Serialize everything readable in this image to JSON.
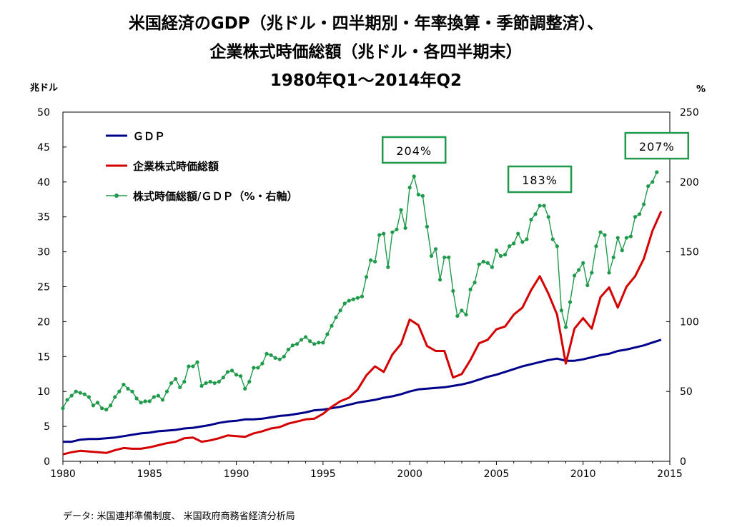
{
  "title_lines": [
    "米国経済のGDP（兆ドル・四半期別・年率換算・季節調整済）、",
    "企業株式時価総額（兆ドル・各四半期末）",
    "1980年Q1～2014年Q2"
  ],
  "source": "データ:  米国連邦準備制度、 米国政府商務省経済分析局",
  "chart_data": {
    "type": "line",
    "title": "米国経済のGDP（兆ドル・四半期別・年率換算・季節調整済）、企業株式時価総額（兆ドル・各四半期末） 1980年Q1～2014年Q2",
    "xlabel": "",
    "ylabel": "兆ドル",
    "y2label": "%",
    "xlim": [
      1980,
      2015
    ],
    "ylim": [
      0,
      50
    ],
    "y2lim": [
      0,
      250
    ],
    "xticks": [
      1980,
      1985,
      1990,
      1995,
      2000,
      2005,
      2010,
      2015
    ],
    "yticks": [
      0,
      5,
      10,
      15,
      20,
      25,
      30,
      35,
      40,
      45,
      50
    ],
    "y2ticks": [
      0,
      50,
      100,
      150,
      200,
      250
    ],
    "grid": false,
    "legend_position": "top-left",
    "series": [
      {
        "name": "ＧＤＰ",
        "axis": "left",
        "color": "#00008b",
        "markers": false,
        "points": [
          [
            1980.0,
            2.8
          ],
          [
            1980.5,
            2.8
          ],
          [
            1981.0,
            3.1
          ],
          [
            1981.5,
            3.2
          ],
          [
            1982.0,
            3.2
          ],
          [
            1982.5,
            3.3
          ],
          [
            1983.0,
            3.4
          ],
          [
            1983.5,
            3.6
          ],
          [
            1984.0,
            3.8
          ],
          [
            1984.5,
            4.0
          ],
          [
            1985.0,
            4.1
          ],
          [
            1985.5,
            4.3
          ],
          [
            1986.0,
            4.4
          ],
          [
            1986.5,
            4.5
          ],
          [
            1987.0,
            4.7
          ],
          [
            1987.5,
            4.8
          ],
          [
            1988.0,
            5.0
          ],
          [
            1988.5,
            5.2
          ],
          [
            1989.0,
            5.5
          ],
          [
            1989.5,
            5.7
          ],
          [
            1990.0,
            5.8
          ],
          [
            1990.5,
            6.0
          ],
          [
            1991.0,
            6.0
          ],
          [
            1991.5,
            6.1
          ],
          [
            1992.0,
            6.3
          ],
          [
            1992.5,
            6.5
          ],
          [
            1993.0,
            6.6
          ],
          [
            1993.5,
            6.8
          ],
          [
            1994.0,
            7.0
          ],
          [
            1994.5,
            7.3
          ],
          [
            1995.0,
            7.4
          ],
          [
            1995.5,
            7.6
          ],
          [
            1996.0,
            7.8
          ],
          [
            1996.5,
            8.1
          ],
          [
            1997.0,
            8.4
          ],
          [
            1997.5,
            8.6
          ],
          [
            1998.0,
            8.8
          ],
          [
            1998.5,
            9.1
          ],
          [
            1999.0,
            9.3
          ],
          [
            1999.5,
            9.6
          ],
          [
            2000.0,
            10.0
          ],
          [
            2000.5,
            10.3
          ],
          [
            2001.0,
            10.4
          ],
          [
            2001.5,
            10.5
          ],
          [
            2002.0,
            10.6
          ],
          [
            2002.5,
            10.8
          ],
          [
            2003.0,
            11.0
          ],
          [
            2003.5,
            11.3
          ],
          [
            2004.0,
            11.7
          ],
          [
            2004.5,
            12.1
          ],
          [
            2005.0,
            12.4
          ],
          [
            2005.5,
            12.8
          ],
          [
            2006.0,
            13.2
          ],
          [
            2006.5,
            13.6
          ],
          [
            2007.0,
            13.9
          ],
          [
            2007.5,
            14.2
          ],
          [
            2008.0,
            14.5
          ],
          [
            2008.5,
            14.7
          ],
          [
            2009.0,
            14.4
          ],
          [
            2009.5,
            14.4
          ],
          [
            2010.0,
            14.6
          ],
          [
            2010.5,
            14.9
          ],
          [
            2011.0,
            15.2
          ],
          [
            2011.5,
            15.4
          ],
          [
            2012.0,
            15.8
          ],
          [
            2012.5,
            16.0
          ],
          [
            2013.0,
            16.3
          ],
          [
            2013.5,
            16.6
          ],
          [
            2014.0,
            17.0
          ],
          [
            2014.5,
            17.4
          ]
        ]
      },
      {
        "name": "企業株式時価総額",
        "axis": "left",
        "color": "#d40000",
        "markers": false,
        "points": [
          [
            1980.0,
            1.0
          ],
          [
            1980.5,
            1.3
          ],
          [
            1981.0,
            1.5
          ],
          [
            1981.5,
            1.4
          ],
          [
            1982.0,
            1.3
          ],
          [
            1982.5,
            1.2
          ],
          [
            1983.0,
            1.6
          ],
          [
            1983.5,
            1.9
          ],
          [
            1984.0,
            1.8
          ],
          [
            1984.5,
            1.8
          ],
          [
            1985.0,
            2.0
          ],
          [
            1985.5,
            2.3
          ],
          [
            1986.0,
            2.6
          ],
          [
            1986.5,
            2.8
          ],
          [
            1987.0,
            3.3
          ],
          [
            1987.5,
            3.4
          ],
          [
            1988.0,
            2.8
          ],
          [
            1988.5,
            3.0
          ],
          [
            1989.0,
            3.3
          ],
          [
            1989.5,
            3.7
          ],
          [
            1990.0,
            3.6
          ],
          [
            1990.5,
            3.5
          ],
          [
            1991.0,
            4.0
          ],
          [
            1991.5,
            4.3
          ],
          [
            1992.0,
            4.7
          ],
          [
            1992.5,
            4.9
          ],
          [
            1993.0,
            5.4
          ],
          [
            1993.5,
            5.7
          ],
          [
            1994.0,
            6.0
          ],
          [
            1994.5,
            6.1
          ],
          [
            1995.0,
            6.8
          ],
          [
            1995.5,
            7.8
          ],
          [
            1996.0,
            8.6
          ],
          [
            1996.5,
            9.1
          ],
          [
            1997.0,
            10.3
          ],
          [
            1997.5,
            12.3
          ],
          [
            1998.0,
            13.6
          ],
          [
            1998.5,
            12.8
          ],
          [
            1999.0,
            15.3
          ],
          [
            1999.5,
            16.8
          ],
          [
            2000.0,
            20.3
          ],
          [
            2000.5,
            19.5
          ],
          [
            2001.0,
            16.5
          ],
          [
            2001.5,
            15.8
          ],
          [
            2002.0,
            15.8
          ],
          [
            2002.5,
            12.0
          ],
          [
            2003.0,
            12.5
          ],
          [
            2003.5,
            14.5
          ],
          [
            2004.0,
            16.9
          ],
          [
            2004.5,
            17.4
          ],
          [
            2005.0,
            18.9
          ],
          [
            2005.5,
            19.3
          ],
          [
            2006.0,
            21.0
          ],
          [
            2006.5,
            22.0
          ],
          [
            2007.0,
            24.5
          ],
          [
            2007.5,
            26.5
          ],
          [
            2008.0,
            24.0
          ],
          [
            2008.5,
            21.0
          ],
          [
            2009.0,
            14.0
          ],
          [
            2009.5,
            19.0
          ],
          [
            2010.0,
            20.5
          ],
          [
            2010.5,
            19.0
          ],
          [
            2011.0,
            23.5
          ],
          [
            2011.5,
            24.9
          ],
          [
            2012.0,
            22.0
          ],
          [
            2012.5,
            25.0
          ],
          [
            2013.0,
            26.5
          ],
          [
            2013.5,
            29.0
          ],
          [
            2014.0,
            33.0
          ],
          [
            2014.5,
            35.8
          ]
        ]
      },
      {
        "name": "株式時価総額/ＧＤＰ（%・右軸）",
        "axis": "right",
        "color": "#1e9a4a",
        "markers": true,
        "points": [
          [
            1980.0,
            38
          ],
          [
            1980.25,
            44
          ],
          [
            1980.5,
            47
          ],
          [
            1980.75,
            50
          ],
          [
            1981.0,
            49
          ],
          [
            1981.25,
            48
          ],
          [
            1981.5,
            46
          ],
          [
            1981.75,
            40
          ],
          [
            1982.0,
            42
          ],
          [
            1982.25,
            38
          ],
          [
            1982.5,
            37
          ],
          [
            1982.75,
            40
          ],
          [
            1983.0,
            46
          ],
          [
            1983.25,
            50
          ],
          [
            1983.5,
            55
          ],
          [
            1983.75,
            52
          ],
          [
            1984.0,
            50
          ],
          [
            1984.25,
            45
          ],
          [
            1984.5,
            42
          ],
          [
            1984.75,
            43
          ],
          [
            1985.0,
            43
          ],
          [
            1985.25,
            46
          ],
          [
            1985.5,
            47
          ],
          [
            1985.75,
            44
          ],
          [
            1986.0,
            50
          ],
          [
            1986.25,
            56
          ],
          [
            1986.5,
            59
          ],
          [
            1986.75,
            53
          ],
          [
            1987.0,
            57
          ],
          [
            1987.25,
            68
          ],
          [
            1987.5,
            68
          ],
          [
            1987.75,
            71
          ],
          [
            1988.0,
            54
          ],
          [
            1988.25,
            56
          ],
          [
            1988.5,
            57
          ],
          [
            1988.75,
            56
          ],
          [
            1989.0,
            57
          ],
          [
            1989.25,
            60
          ],
          [
            1989.5,
            64
          ],
          [
            1989.75,
            65
          ],
          [
            1990.0,
            62
          ],
          [
            1990.25,
            61
          ],
          [
            1990.5,
            52
          ],
          [
            1990.75,
            57
          ],
          [
            1991.0,
            67
          ],
          [
            1991.25,
            67
          ],
          [
            1991.5,
            70
          ],
          [
            1991.75,
            77
          ],
          [
            1992.0,
            76
          ],
          [
            1992.25,
            74
          ],
          [
            1992.5,
            73
          ],
          [
            1992.75,
            75
          ],
          [
            1993.0,
            80
          ],
          [
            1993.25,
            83
          ],
          [
            1993.5,
            84
          ],
          [
            1993.75,
            87
          ],
          [
            1994.0,
            89
          ],
          [
            1994.25,
            86
          ],
          [
            1994.5,
            84
          ],
          [
            1994.75,
            85
          ],
          [
            1995.0,
            85
          ],
          [
            1995.25,
            91
          ],
          [
            1995.5,
            97
          ],
          [
            1995.75,
            103
          ],
          [
            1996.0,
            108
          ],
          [
            1996.25,
            113
          ],
          [
            1996.5,
            115
          ],
          [
            1996.75,
            116
          ],
          [
            1997.0,
            117
          ],
          [
            1997.25,
            118
          ],
          [
            1997.5,
            132
          ],
          [
            1997.75,
            144
          ],
          [
            1998.0,
            143
          ],
          [
            1998.25,
            162
          ],
          [
            1998.5,
            163
          ],
          [
            1998.75,
            139
          ],
          [
            1999.0,
            164
          ],
          [
            1999.25,
            166
          ],
          [
            1999.5,
            180
          ],
          [
            1999.75,
            167
          ],
          [
            2000.0,
            196
          ],
          [
            2000.25,
            204
          ],
          [
            2000.5,
            191
          ],
          [
            2000.75,
            190
          ],
          [
            2001.0,
            168
          ],
          [
            2001.25,
            147
          ],
          [
            2001.5,
            152
          ],
          [
            2001.75,
            130
          ],
          [
            2002.0,
            146
          ],
          [
            2002.25,
            146
          ],
          [
            2002.5,
            122
          ],
          [
            2002.75,
            104
          ],
          [
            2003.0,
            108
          ],
          [
            2003.25,
            105
          ],
          [
            2003.5,
            123
          ],
          [
            2003.75,
            128
          ],
          [
            2004.0,
            141
          ],
          [
            2004.25,
            143
          ],
          [
            2004.5,
            142
          ],
          [
            2004.75,
            139
          ],
          [
            2005.0,
            151
          ],
          [
            2005.25,
            147
          ],
          [
            2005.5,
            148
          ],
          [
            2005.75,
            154
          ],
          [
            2006.0,
            156
          ],
          [
            2006.25,
            163
          ],
          [
            2006.5,
            157
          ],
          [
            2006.75,
            159
          ],
          [
            2007.0,
            173
          ],
          [
            2007.25,
            177
          ],
          [
            2007.5,
            183
          ],
          [
            2007.75,
            183
          ],
          [
            2008.0,
            175
          ],
          [
            2008.25,
            159
          ],
          [
            2008.5,
            154
          ],
          [
            2008.75,
            108
          ],
          [
            2009.0,
            96
          ],
          [
            2009.25,
            114
          ],
          [
            2009.5,
            133
          ],
          [
            2009.75,
            137
          ],
          [
            2010.0,
            142
          ],
          [
            2010.25,
            126
          ],
          [
            2010.5,
            135
          ],
          [
            2010.75,
            154
          ],
          [
            2011.0,
            164
          ],
          [
            2011.25,
            162
          ],
          [
            2011.5,
            135
          ],
          [
            2011.75,
            146
          ],
          [
            2012.0,
            160
          ],
          [
            2012.25,
            151
          ],
          [
            2012.5,
            160
          ],
          [
            2012.75,
            161
          ],
          [
            2013.0,
            175
          ],
          [
            2013.25,
            177
          ],
          [
            2013.5,
            184
          ],
          [
            2013.75,
            197
          ],
          [
            2014.0,
            200
          ],
          [
            2014.25,
            207
          ]
        ]
      }
    ],
    "annotations": [
      {
        "text": "204%",
        "x": 2000.25,
        "y2": 204
      },
      {
        "text": "183%",
        "x": 2007.5,
        "y2": 183
      },
      {
        "text": "207%",
        "x": 2014.25,
        "y2": 207
      }
    ]
  }
}
